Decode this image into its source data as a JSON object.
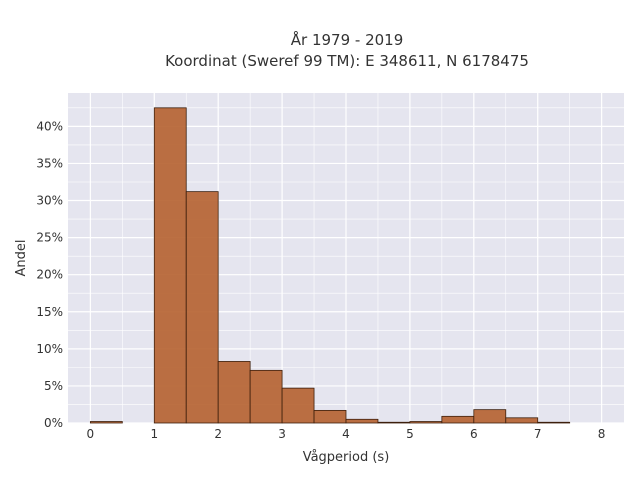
{
  "chart_data": {
    "type": "bar",
    "title": "År 1979 - 2019",
    "subtitle": "Koordinat (Sweref 99 TM): E 348611, N 6178475",
    "xlabel": "Vågperiod (s)",
    "ylabel": "Andel",
    "xlim": [
      -0.35,
      8.35
    ],
    "ylim": [
      0,
      44.5
    ],
    "xticks": [
      0,
      1,
      2,
      3,
      4,
      5,
      6,
      7,
      8
    ],
    "xtick_labels": [
      "0",
      "1",
      "2",
      "3",
      "4",
      "5",
      "6",
      "7",
      "8"
    ],
    "yticks": [
      0,
      5,
      10,
      15,
      20,
      25,
      30,
      35,
      40
    ],
    "ytick_labels": [
      "0%",
      "5%",
      "10%",
      "15%",
      "20%",
      "25%",
      "30%",
      "35%",
      "40%"
    ],
    "grid": true,
    "bin_width": 0.5,
    "bins": [
      {
        "x0": 0.0,
        "x1": 0.5,
        "value": 0.2
      },
      {
        "x0": 0.5,
        "x1": 1.0,
        "value": 0.0
      },
      {
        "x0": 1.0,
        "x1": 1.5,
        "value": 42.5
      },
      {
        "x0": 1.5,
        "x1": 2.0,
        "value": 31.2
      },
      {
        "x0": 2.0,
        "x1": 2.5,
        "value": 8.3
      },
      {
        "x0": 2.5,
        "x1": 3.0,
        "value": 7.1
      },
      {
        "x0": 3.0,
        "x1": 3.5,
        "value": 4.7
      },
      {
        "x0": 3.5,
        "x1": 4.0,
        "value": 1.7
      },
      {
        "x0": 4.0,
        "x1": 4.5,
        "value": 0.5
      },
      {
        "x0": 4.5,
        "x1": 5.0,
        "value": 0.1
      },
      {
        "x0": 5.0,
        "x1": 5.5,
        "value": 0.2
      },
      {
        "x0": 5.5,
        "x1": 6.0,
        "value": 0.9
      },
      {
        "x0": 6.0,
        "x1": 6.5,
        "value": 1.8
      },
      {
        "x0": 6.5,
        "x1": 7.0,
        "value": 0.7
      },
      {
        "x0": 7.0,
        "x1": 7.5,
        "value": 0.1
      },
      {
        "x0": 7.5,
        "x1": 8.0,
        "value": 0.0
      }
    ],
    "colors": {
      "bar_fill": "#b5612f",
      "bar_stroke": "#3d1f0c",
      "plot_bg": "#e5e5ef",
      "grid": "#ffffff"
    }
  }
}
